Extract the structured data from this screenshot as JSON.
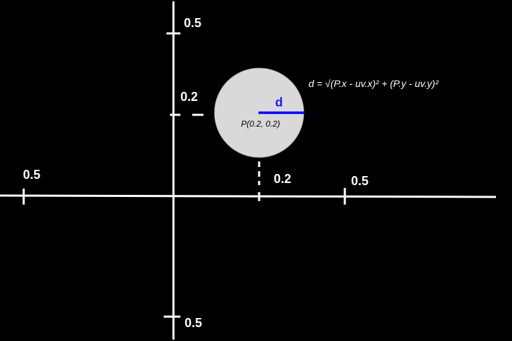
{
  "colors": {
    "background": "#000000",
    "axis": "#ffffff",
    "circle_fill": "#d9d9d9",
    "radius_line": "#0000ff"
  },
  "labels": {
    "y_top": "0.5",
    "y_point": "0.2",
    "y_bottom": "0.5",
    "x_left": "0.5",
    "x_point": "0.2",
    "x_right": "0.5"
  },
  "point": {
    "label": "P(0.2, 0.2)"
  },
  "distance": {
    "label": "d",
    "formula": "d = √(P.x - uv.x)² + (P.y - uv.y)²"
  }
}
